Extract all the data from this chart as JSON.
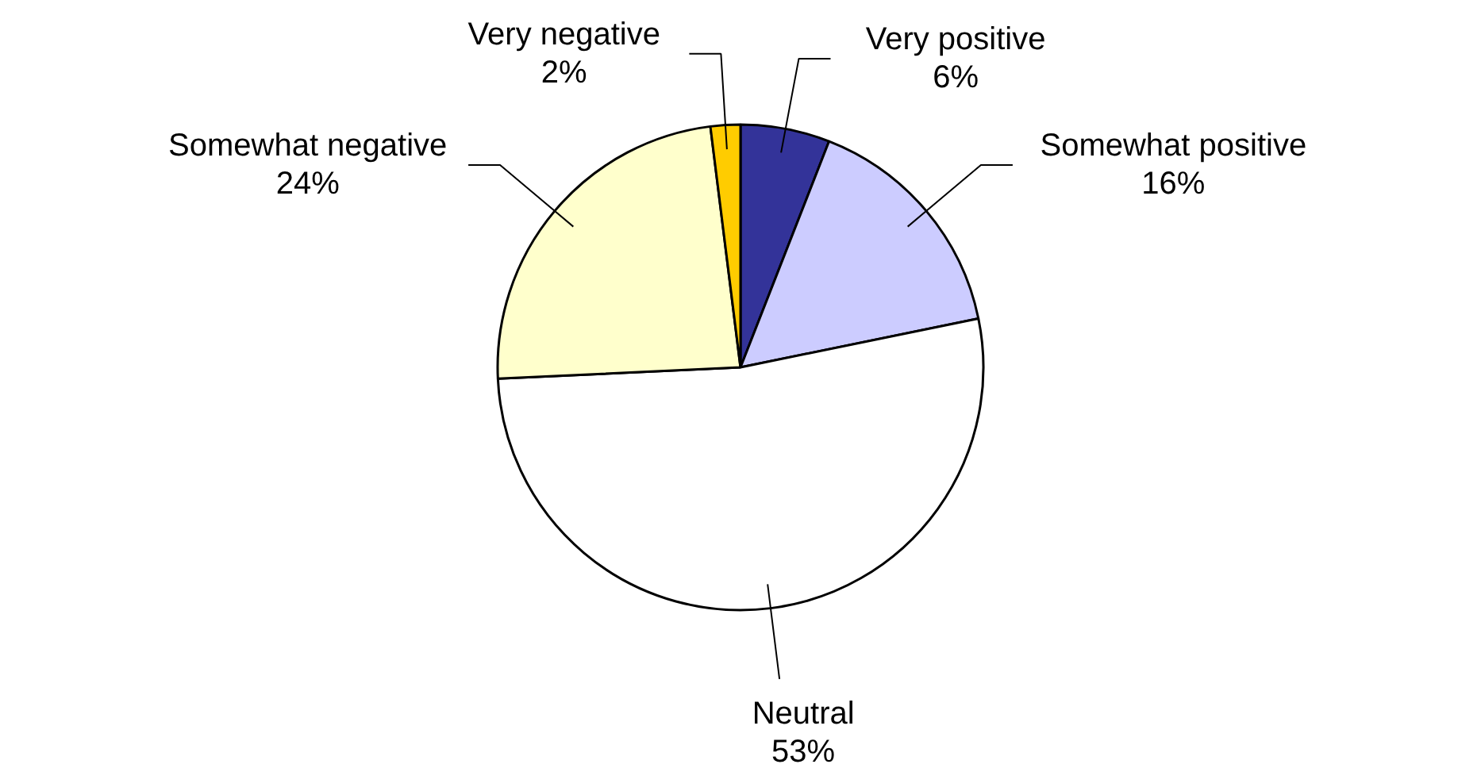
{
  "chart_data": {
    "type": "pie",
    "categories": [
      "Very positive",
      "Somewhat positive",
      "Neutral",
      "Somewhat negative",
      "Very negative"
    ],
    "values": [
      6,
      16,
      53,
      24,
      2
    ],
    "value_labels": [
      "6%",
      "16%",
      "53%",
      "24%",
      "2%"
    ],
    "colors": [
      "#333399",
      "#ccccff",
      "#ffffff",
      "#ffffcc",
      "#ffcc00"
    ]
  }
}
